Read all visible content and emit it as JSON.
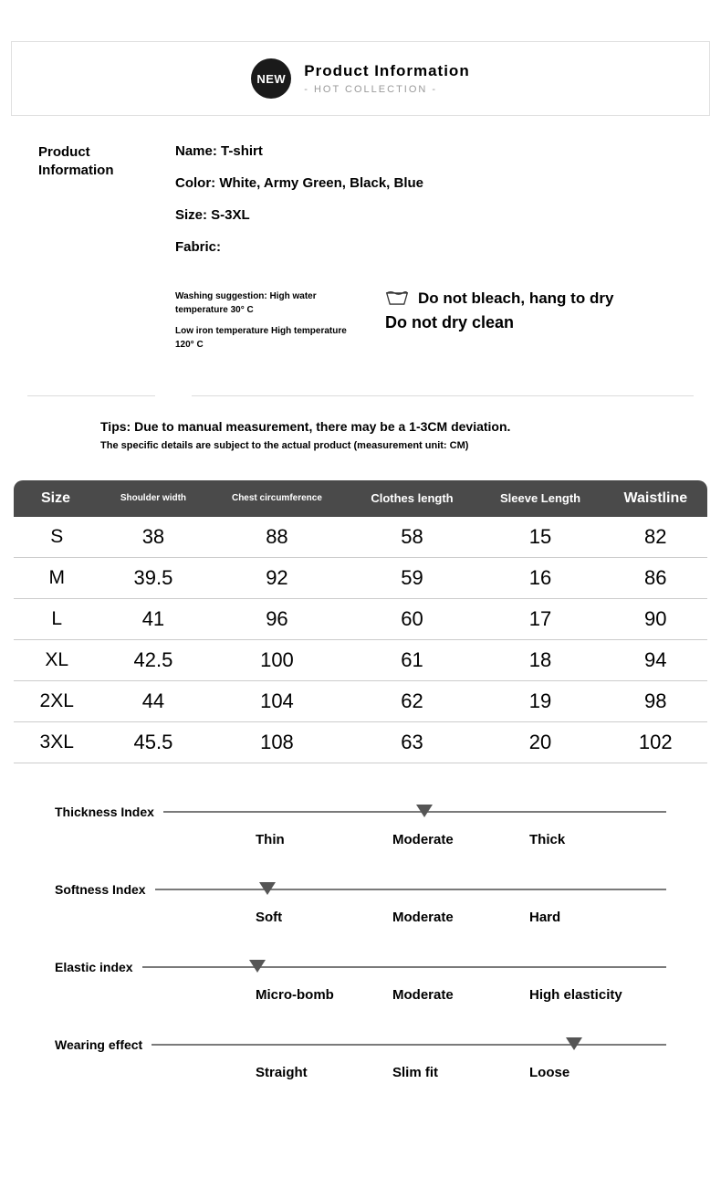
{
  "header": {
    "badge": "NEW",
    "title": "Product Information",
    "subtitle": "-   HOT  COLLECTION   -",
    "border_color": "#e0e0e0",
    "badge_bg": "#1a1a1a",
    "badge_fg": "#ffffff",
    "subtitle_color": "#9a9a9a"
  },
  "info": {
    "section_label": "Product Information",
    "name": "Name: T-shirt",
    "color": "Color: White, Army Green, Black, Blue",
    "size": "Size: S-3XL",
    "fabric": "Fabric:",
    "wash1": "Washing suggestion: High water temperature 30° C",
    "wash2": "Low iron temperature High temperature 120° C",
    "bleach": "Do not bleach, hang to dry",
    "dryclean": "Do not dry clean"
  },
  "tips": {
    "main": "Tips: Due to manual measurement, there may be a 1-3CM deviation.",
    "sub": "The specific details are subject to the actual product (measurement unit: CM)"
  },
  "size_table": {
    "header_bg": "#4a4a4a",
    "header_fg": "#ffffff",
    "row_border": "#cccccc",
    "columns": [
      "Size",
      "Shoulder width",
      "Chest circumference",
      "Clothes length",
      "Sleeve Length",
      "Waistline"
    ],
    "rows": [
      [
        "S",
        "38",
        "88",
        "58",
        "15",
        "82"
      ],
      [
        "M",
        "39.5",
        "92",
        "59",
        "16",
        "86"
      ],
      [
        "L",
        "41",
        "96",
        "60",
        "17",
        "90"
      ],
      [
        "XL",
        "42.5",
        "100",
        "61",
        "18",
        "94"
      ],
      [
        "2XL",
        "44",
        "104",
        "62",
        "19",
        "98"
      ],
      [
        "3XL",
        "45.5",
        "108",
        "63",
        "20",
        "102"
      ]
    ]
  },
  "indices": {
    "line_color": "#7a7a7a",
    "marker_color": "#555555",
    "items": [
      {
        "label": "Thickness Index",
        "options": [
          "Thin",
          "Moderate",
          "Thick"
        ],
        "marker_pct": 52
      },
      {
        "label": "Softness Index",
        "options": [
          "Soft",
          "Moderate",
          "Hard"
        ],
        "marker_pct": 22
      },
      {
        "label": "Elastic index",
        "options": [
          "Micro-bomb",
          "Moderate",
          "High elasticity"
        ],
        "marker_pct": 22
      },
      {
        "label": "Wearing effect",
        "options": [
          "Straight",
          "Slim fit",
          "Loose"
        ],
        "marker_pct": 82
      }
    ]
  }
}
